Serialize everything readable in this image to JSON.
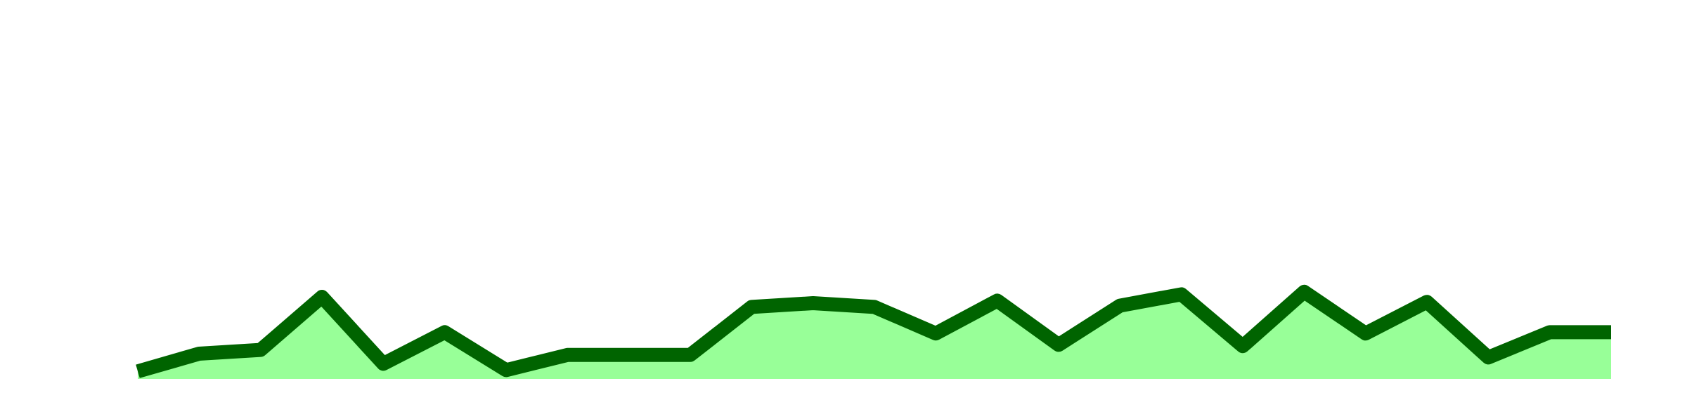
{
  "chart_data": {
    "type": "area",
    "title": "",
    "xlabel": "",
    "ylabel": "",
    "grid": false,
    "legend": "none",
    "x": [
      1,
      2,
      3,
      4,
      5,
      6,
      7,
      8,
      9,
      10,
      11,
      12,
      13,
      14,
      15,
      16,
      17,
      18,
      19,
      20,
      21,
      22,
      23,
      24,
      25
    ],
    "values": [
      6,
      20,
      23,
      65,
      12,
      37,
      7,
      19,
      19,
      19,
      57,
      60,
      57,
      36,
      62,
      27,
      58,
      67,
      26,
      69,
      36,
      61,
      17,
      37,
      37
    ],
    "ylim": [
      0,
      300
    ],
    "colors": {
      "line": "#006400",
      "fill": "#98ff98"
    }
  }
}
